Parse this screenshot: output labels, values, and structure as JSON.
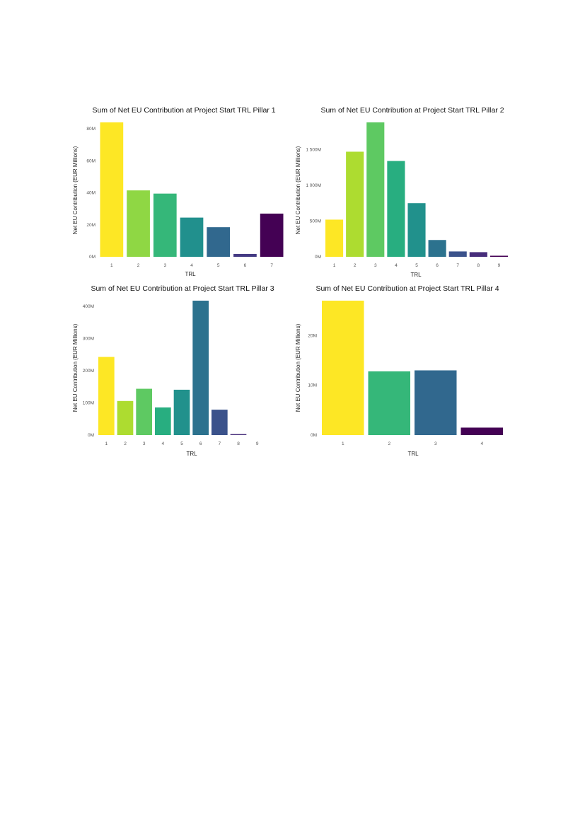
{
  "chart_data": [
    {
      "type": "bar",
      "title": "Sum of Net EU Contribution at Project Start TRL Pillar 1",
      "xlabel": "TRL",
      "ylabel": "Net EU Contribution (EUR Millions)",
      "categories": [
        "1",
        "2",
        "3",
        "4",
        "5",
        "6",
        "7"
      ],
      "values": [
        84,
        41.5,
        39.5,
        24.5,
        18.5,
        1.8,
        27
      ],
      "ylim": [
        0,
        84
      ],
      "y_ticks": [
        0,
        20,
        40,
        60,
        80
      ],
      "y_tick_labels": [
        "0M",
        "20M",
        "40M",
        "60M",
        "80M"
      ],
      "colors": [
        "#fde725",
        "#8fd744",
        "#35b779",
        "#21908d",
        "#31688e",
        "#443a83",
        "#440154"
      ],
      "grid": false,
      "legend": "none"
    },
    {
      "type": "bar",
      "title": "Sum of Net EU Contribution at Project Start TRL Pillar 2",
      "xlabel": "TRL",
      "ylabel": "Net EU Contribution (EUR Millions)",
      "categories": [
        "1",
        "2",
        "3",
        "4",
        "5",
        "6",
        "7",
        "8",
        "9"
      ],
      "values": [
        520,
        1470,
        1880,
        1340,
        750,
        235,
        75,
        65,
        15
      ],
      "ylim": [
        0,
        1880
      ],
      "y_ticks": [
        0,
        500,
        1000,
        1500
      ],
      "y_tick_labels": [
        "0M",
        "500M",
        "1 000M",
        "1 500M"
      ],
      "colors": [
        "#fde725",
        "#addc30",
        "#5ec962",
        "#28ae80",
        "#21918c",
        "#2c728e",
        "#3b528b",
        "#472d7b",
        "#440154"
      ],
      "grid": false,
      "legend": "none"
    },
    {
      "type": "bar",
      "title": "Sum of Net EU Contribution at Project Start TRL Pillar 3",
      "xlabel": "TRL",
      "ylabel": "Net EU Contribution (EUR Millions)",
      "categories": [
        "1",
        "2",
        "3",
        "4",
        "5",
        "6",
        "7",
        "8",
        "9"
      ],
      "values": [
        243,
        106,
        144,
        86,
        141,
        418,
        79,
        3,
        0
      ],
      "ylim": [
        0,
        418
      ],
      "y_ticks": [
        0,
        100,
        200,
        300,
        400
      ],
      "y_tick_labels": [
        "0M",
        "100M",
        "200M",
        "300M",
        "400M"
      ],
      "colors": [
        "#fde725",
        "#addc30",
        "#5ec962",
        "#28ae80",
        "#21918c",
        "#2c728e",
        "#3b528b",
        "#472d7b",
        "#440154"
      ],
      "grid": false,
      "legend": "none"
    },
    {
      "type": "bar",
      "title": "Sum of Net EU Contribution at Project Start TRL Pillar 4",
      "xlabel": "TRL",
      "ylabel": "Net EU Contribution (EUR Millions)",
      "categories": [
        "1",
        "2",
        "3",
        "4"
      ],
      "values": [
        27,
        12.8,
        13,
        1.5
      ],
      "ylim": [
        0,
        27
      ],
      "y_ticks": [
        0,
        10,
        20
      ],
      "y_tick_labels": [
        "0M",
        "10M",
        "20M"
      ],
      "colors": [
        "#fde725",
        "#35b779",
        "#31688e",
        "#440154"
      ],
      "grid": false,
      "legend": "none"
    }
  ]
}
